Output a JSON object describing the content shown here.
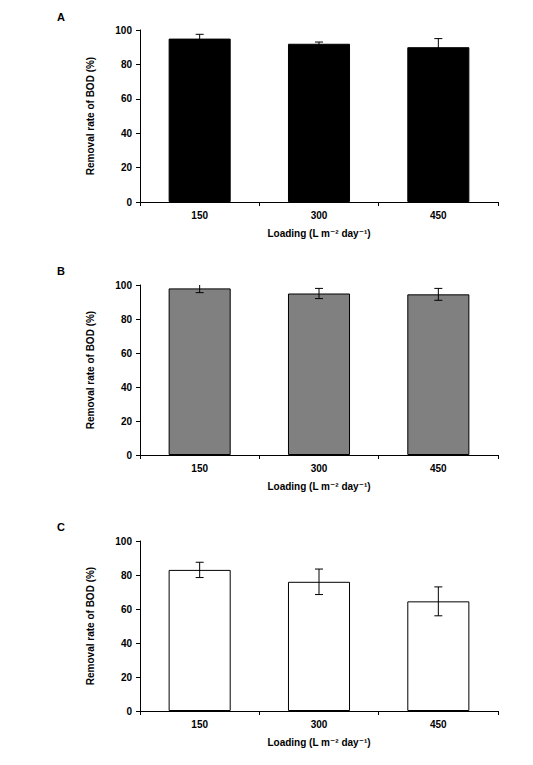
{
  "chart_data": [
    {
      "type": "bar",
      "title": "A",
      "categories": [
        "150",
        "300",
        "450"
      ],
      "values": [
        95,
        92,
        90
      ],
      "errors": [
        2.5,
        1,
        5
      ],
      "color": "#000000",
      "x_label": "Loading (L m⁻² day⁻¹)",
      "y_label": "Removal rate of BOD (%)",
      "ylim": [
        0,
        100
      ],
      "yticks": [
        0,
        20,
        40,
        60,
        80,
        100
      ],
      "grid": false
    },
    {
      "type": "bar",
      "title": "B",
      "categories": [
        "150",
        "300",
        "450"
      ],
      "values": [
        98,
        95,
        94.5
      ],
      "errors": [
        2.5,
        3,
        3.5
      ],
      "color": "#808080",
      "x_label": "Loading (L m⁻² day⁻¹)",
      "y_label": "Removal rate of BOD (%)",
      "ylim": [
        0,
        100
      ],
      "yticks": [
        0,
        20,
        40,
        60,
        80,
        100
      ],
      "grid": false
    },
    {
      "type": "bar",
      "title": "C",
      "categories": [
        "150",
        "300",
        "450"
      ],
      "values": [
        83,
        76,
        64.5
      ],
      "errors": [
        4.5,
        7.5,
        8.5
      ],
      "color": "#ffffff",
      "x_label": "Loading (L m⁻² day⁻¹)",
      "y_label": "Removal rate of BOD (%)",
      "ylim": [
        0,
        100
      ],
      "yticks": [
        0,
        20,
        40,
        60,
        80,
        100
      ],
      "grid": false
    }
  ]
}
